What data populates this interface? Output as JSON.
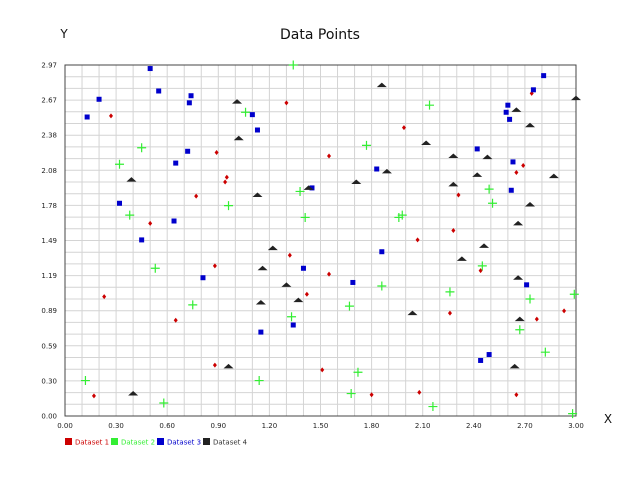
{
  "chart_data": {
    "type": "scatter",
    "title": "Data Points",
    "xlabel": "X",
    "ylabel": "Y",
    "xlim": [
      0,
      3
    ],
    "ylim": [
      0,
      2.97
    ],
    "xticks": [
      "0.00",
      "0.30",
      "0.60",
      "0.90",
      "1.20",
      "1.50",
      "1.80",
      "2.10",
      "2.40",
      "2.70",
      "3.00"
    ],
    "yticks": [
      "0.00",
      "0.30",
      "0.59",
      "0.89",
      "1.19",
      "1.49",
      "1.78",
      "2.08",
      "2.38",
      "2.67",
      "2.97"
    ],
    "grid": true,
    "legend_position": "bottom-left",
    "series": [
      {
        "name": "Dataset 1",
        "color": "#cc0000",
        "marker": "diamond",
        "points": [
          [
            0.17,
            0.17
          ],
          [
            0.23,
            1.01
          ],
          [
            0.27,
            2.54
          ],
          [
            0.5,
            1.63
          ],
          [
            0.65,
            0.81
          ],
          [
            0.77,
            1.86
          ],
          [
            0.88,
            0.43
          ],
          [
            0.88,
            1.27
          ],
          [
            0.89,
            2.23
          ],
          [
            0.94,
            1.98
          ],
          [
            0.95,
            2.02
          ],
          [
            1.3,
            2.65
          ],
          [
            1.32,
            1.36
          ],
          [
            1.42,
            1.03
          ],
          [
            1.51,
            0.39
          ],
          [
            1.55,
            1.2
          ],
          [
            1.55,
            2.2
          ],
          [
            1.8,
            0.18
          ],
          [
            1.99,
            2.44
          ],
          [
            2.07,
            1.49
          ],
          [
            2.08,
            0.2
          ],
          [
            2.26,
            0.87
          ],
          [
            2.28,
            1.57
          ],
          [
            2.31,
            1.87
          ],
          [
            2.44,
            1.23
          ],
          [
            2.65,
            0.18
          ],
          [
            2.65,
            2.06
          ],
          [
            2.69,
            2.12
          ],
          [
            2.74,
            2.73
          ],
          [
            2.77,
            0.82
          ],
          [
            2.93,
            0.89
          ]
        ]
      },
      {
        "name": "Dataset 2",
        "color": "#33ee33",
        "marker": "plus",
        "points": [
          [
            0.12,
            0.3
          ],
          [
            0.32,
            2.13
          ],
          [
            0.38,
            1.7
          ],
          [
            0.45,
            2.27
          ],
          [
            0.53,
            1.25
          ],
          [
            0.58,
            0.11
          ],
          [
            0.75,
            0.94
          ],
          [
            0.96,
            1.78
          ],
          [
            1.06,
            2.57
          ],
          [
            1.14,
            0.3
          ],
          [
            1.33,
            0.84
          ],
          [
            1.34,
            2.97
          ],
          [
            1.38,
            1.9
          ],
          [
            1.41,
            1.68
          ],
          [
            1.67,
            0.93
          ],
          [
            1.68,
            0.19
          ],
          [
            1.72,
            0.37
          ],
          [
            1.77,
            2.29
          ],
          [
            1.86,
            1.1
          ],
          [
            1.96,
            1.68
          ],
          [
            1.98,
            1.7
          ],
          [
            2.14,
            2.63
          ],
          [
            2.16,
            0.08
          ],
          [
            2.26,
            1.05
          ],
          [
            2.45,
            1.27
          ],
          [
            2.49,
            1.92
          ],
          [
            2.51,
            1.8
          ],
          [
            2.67,
            0.73
          ],
          [
            2.73,
            0.99
          ],
          [
            2.82,
            0.54
          ],
          [
            2.98,
            0.02
          ],
          [
            2.99,
            1.03
          ]
        ]
      },
      {
        "name": "Dataset 3",
        "color": "#0000cc",
        "marker": "square",
        "points": [
          [
            0.13,
            2.53
          ],
          [
            0.2,
            2.68
          ],
          [
            0.32,
            1.8
          ],
          [
            0.45,
            1.49
          ],
          [
            0.5,
            2.94
          ],
          [
            0.55,
            2.75
          ],
          [
            0.64,
            1.65
          ],
          [
            0.65,
            2.14
          ],
          [
            0.72,
            2.24
          ],
          [
            0.73,
            2.65
          ],
          [
            0.74,
            2.71
          ],
          [
            0.81,
            1.17
          ],
          [
            1.1,
            2.55
          ],
          [
            1.13,
            2.42
          ],
          [
            1.15,
            0.71
          ],
          [
            1.34,
            0.77
          ],
          [
            1.4,
            1.25
          ],
          [
            1.45,
            1.93
          ],
          [
            1.69,
            1.13
          ],
          [
            1.83,
            2.09
          ],
          [
            1.86,
            1.39
          ],
          [
            2.42,
            2.26
          ],
          [
            2.44,
            0.47
          ],
          [
            2.49,
            0.52
          ],
          [
            2.59,
            2.57
          ],
          [
            2.6,
            2.63
          ],
          [
            2.61,
            2.51
          ],
          [
            2.62,
            1.91
          ],
          [
            2.63,
            2.15
          ],
          [
            2.71,
            1.11
          ],
          [
            2.75,
            2.76
          ],
          [
            2.81,
            2.88
          ]
        ]
      },
      {
        "name": "Dataset 4",
        "color": "#222222",
        "marker": "triangle",
        "points": [
          [
            0.39,
            2.0
          ],
          [
            0.4,
            0.19
          ],
          [
            0.96,
            0.42
          ],
          [
            1.01,
            2.66
          ],
          [
            1.02,
            2.35
          ],
          [
            1.13,
            1.87
          ],
          [
            1.15,
            0.96
          ],
          [
            1.16,
            1.25
          ],
          [
            1.22,
            1.42
          ],
          [
            1.3,
            1.11
          ],
          [
            1.37,
            0.98
          ],
          [
            1.43,
            1.93
          ],
          [
            1.71,
            1.98
          ],
          [
            1.86,
            2.8
          ],
          [
            1.89,
            2.07
          ],
          [
            2.04,
            0.87
          ],
          [
            2.12,
            2.31
          ],
          [
            2.28,
            2.2
          ],
          [
            2.28,
            1.96
          ],
          [
            2.33,
            1.33
          ],
          [
            2.42,
            2.04
          ],
          [
            2.46,
            1.44
          ],
          [
            2.48,
            2.19
          ],
          [
            2.64,
            0.42
          ],
          [
            2.65,
            2.59
          ],
          [
            2.66,
            1.63
          ],
          [
            2.66,
            1.17
          ],
          [
            2.67,
            0.82
          ],
          [
            2.73,
            2.46
          ],
          [
            2.73,
            1.79
          ],
          [
            2.87,
            2.03
          ],
          [
            3.0,
            2.69
          ]
        ]
      }
    ]
  }
}
